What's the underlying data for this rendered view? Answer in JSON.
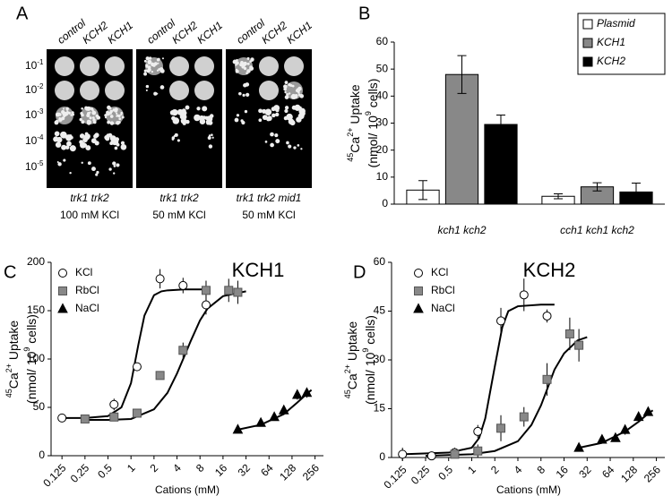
{
  "panel_a": {
    "panel_label": "A",
    "rows": [
      {
        "base": "10",
        "exponent": "-1"
      },
      {
        "base": "10",
        "exponent": "-2"
      },
      {
        "base": "10",
        "exponent": "-3"
      },
      {
        "base": "10",
        "exponent": "-4"
      },
      {
        "base": "10",
        "exponent": "-5"
      }
    ],
    "plates": [
      {
        "columns": [
          "control",
          "KCH2",
          "KCH1"
        ],
        "genotype": "trk1 trk2",
        "condition": "100 mM KCl"
      },
      {
        "columns": [
          "control",
          "KCH2",
          "KCH1"
        ],
        "genotype": "trk1 trk2",
        "condition": "50 mM KCl"
      },
      {
        "columns": [
          "control",
          "KCH2",
          "KCH1"
        ],
        "genotype": "trk1 trk2 mid1",
        "condition": "50 mM KCl"
      }
    ]
  },
  "chart_data": [
    {
      "type": "bar",
      "panel_label": "B",
      "y_label": [
        [
          {
            "text": "45",
            "sup": true
          },
          {
            "text": "Ca"
          },
          {
            "text": "2+",
            "sup": true
          },
          {
            "text": " Uptake"
          }
        ],
        [
          {
            "text": "(nmol/ 10"
          },
          {
            "text": "9",
            "sup": true
          },
          {
            "text": " cells)"
          }
        ]
      ],
      "categories": [
        "kch1 kch2",
        "cch1 kch1 kch2"
      ],
      "series": [
        {
          "name": "Plasmid",
          "color": "#ffffff",
          "values": [
            5.2,
            2.9
          ],
          "errors": [
            3.5,
            0.9
          ]
        },
        {
          "name": "KCH1",
          "color": "#888888",
          "values": [
            48,
            6.4
          ],
          "errors": [
            7,
            1.5
          ]
        },
        {
          "name": "KCH2",
          "color": "#000000",
          "values": [
            29.5,
            4.5
          ],
          "errors": [
            3.5,
            3.3
          ]
        }
      ],
      "ylim": [
        0,
        60
      ],
      "yticks": [
        0,
        10,
        20,
        30,
        40,
        50,
        60
      ],
      "legend": "upper right"
    },
    {
      "type": "scatter",
      "panel_label": "C",
      "title": "KCH1",
      "x_label": "Cations (mM)",
      "y_label": [
        [
          {
            "text": "45",
            "sup": true
          },
          {
            "text": "Ca"
          },
          {
            "text": "2+",
            "sup": true
          },
          {
            "text": " Uptake"
          }
        ],
        [
          {
            "text": "(nmol/ 10"
          },
          {
            "text": "9",
            "sup": true
          },
          {
            "text": " cells)"
          }
        ]
      ],
      "xscale": "log",
      "xlim": [
        0.09,
        330
      ],
      "xticks": [
        0.125,
        0.25,
        0.5,
        1,
        2,
        4,
        8,
        16,
        32,
        64,
        128,
        256
      ],
      "ylim": [
        0,
        200
      ],
      "yticks": [
        0,
        50,
        100,
        150,
        200
      ],
      "legend": "upper left",
      "series": [
        {
          "name": "KCl",
          "marker": "circle",
          "color": "#ffffff",
          "x": [
            0.125,
            0.6,
            1.2,
            2.4,
            4.8,
            9.6
          ],
          "values": [
            39,
            53,
            92,
            183,
            176,
            156
          ],
          "errors": [
            3,
            6,
            4,
            10,
            8,
            10
          ]
        },
        {
          "name": "RbCl",
          "marker": "square",
          "color": "#888888",
          "x": [
            0.25,
            0.6,
            1.2,
            2.4,
            4.8,
            9.6,
            19,
            25
          ],
          "values": [
            38,
            40,
            44,
            83,
            109,
            171,
            171,
            169
          ],
          "errors": [
            3,
            3,
            3,
            3,
            8,
            10,
            12,
            12
          ]
        },
        {
          "name": "NaCl",
          "marker": "triangle",
          "color": "#000000",
          "x": [
            25,
            50,
            75,
            100,
            150,
            200
          ],
          "values": [
            27,
            34,
            40,
            47,
            63,
            65
          ],
          "errors": [
            2,
            2,
            2,
            4,
            5,
            5
          ]
        }
      ],
      "fits": [
        {
          "x": [
            0.125,
            0.25,
            0.5,
            0.75,
            1,
            1.25,
            1.5,
            2,
            2.5,
            3,
            5,
            10
          ],
          "values": [
            39,
            39,
            41,
            50,
            75,
            115,
            145,
            166,
            170,
            171,
            172,
            172
          ]
        },
        {
          "x": [
            0.25,
            0.5,
            1,
            2,
            3,
            4,
            5,
            6,
            8,
            10,
            16,
            32
          ],
          "values": [
            37,
            37,
            38,
            48,
            65,
            85,
            103,
            118,
            140,
            152,
            165,
            170
          ]
        },
        {
          "x": [
            25,
            50,
            100,
            150,
            200,
            230
          ],
          "values": [
            27,
            32,
            43,
            55,
            64,
            68
          ]
        }
      ]
    },
    {
      "type": "scatter",
      "panel_label": "D",
      "title": "KCH2",
      "x_label": "Cations (mM)",
      "y_label": [
        [
          {
            "text": "45",
            "sup": true
          },
          {
            "text": "Ca"
          },
          {
            "text": "2+",
            "sup": true
          },
          {
            "text": " Uptake"
          }
        ],
        [
          {
            "text": "(nmol/ 10"
          },
          {
            "text": "9",
            "sup": true
          },
          {
            "text": " cells)"
          }
        ]
      ],
      "xscale": "log",
      "xlim": [
        0.09,
        330
      ],
      "xticks": [
        0.125,
        0.25,
        0.5,
        1,
        2,
        4,
        8,
        16,
        32,
        64,
        128,
        256
      ],
      "ylim": [
        0,
        60
      ],
      "yticks": [
        0,
        15,
        30,
        45,
        60
      ],
      "legend": "upper left",
      "series": [
        {
          "name": "KCl",
          "marker": "circle",
          "color": "#ffffff",
          "x": [
            0.125,
            0.3,
            0.6,
            1.2,
            2.4,
            4.8,
            9.6
          ],
          "values": [
            1,
            0.5,
            1.5,
            8,
            42,
            50,
            43.5
          ],
          "errors": [
            2,
            1,
            1.5,
            2,
            4,
            5,
            2
          ]
        },
        {
          "name": "RbCl",
          "marker": "square",
          "color": "#888888",
          "x": [
            0.6,
            1.2,
            2.4,
            4.8,
            9.6,
            19,
            25
          ],
          "values": [
            1,
            2,
            9,
            12.5,
            24,
            38,
            34.5
          ],
          "errors": [
            1,
            2,
            4,
            3,
            5,
            5,
            5
          ]
        },
        {
          "name": "NaCl",
          "marker": "triangle",
          "color": "#000000",
          "x": [
            25,
            50,
            75,
            100,
            150,
            200
          ],
          "values": [
            3,
            5.5,
            6,
            8.5,
            12.5,
            14
          ],
          "errors": [
            0.5,
            0.5,
            0.5,
            1.5,
            1,
            0.8
          ]
        }
      ],
      "fits": [
        {
          "x": [
            0.125,
            0.5,
            1,
            1.25,
            1.5,
            2,
            2.5,
            3,
            4,
            8,
            12
          ],
          "values": [
            1,
            1.5,
            3,
            6,
            12,
            28,
            40,
            45,
            46.5,
            47,
            47
          ]
        },
        {
          "x": [
            0.25,
            1,
            2,
            4,
            6,
            8,
            10,
            12,
            16,
            24,
            32
          ],
          "values": [
            0.5,
            1,
            2,
            5,
            10,
            16,
            22,
            27,
            32,
            36,
            37
          ]
        },
        {
          "x": [
            25,
            50,
            100,
            150,
            200,
            230
          ],
          "values": [
            3,
            4.5,
            8,
            11,
            13.5,
            14.5
          ]
        }
      ]
    }
  ]
}
